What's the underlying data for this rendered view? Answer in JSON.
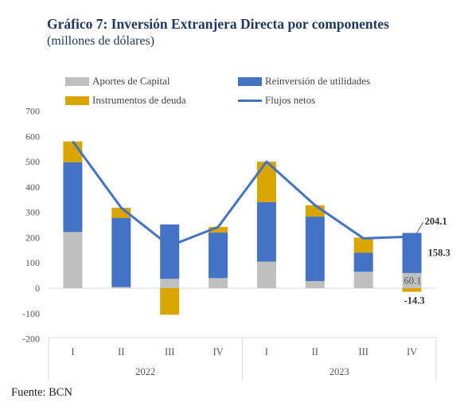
{
  "title": "Gráfico 7: Inversión Extranjera Directa por componentes",
  "subtitle": "(millones de dólares)",
  "source": "Fuente: BCN",
  "legend": [
    {
      "label": "Aportes de Capital",
      "type": "bar",
      "color": "#bfbfbf"
    },
    {
      "label": "Reinversión de utilidades",
      "type": "bar",
      "color": "#4472c4"
    },
    {
      "label": "Instrumentos de deuda",
      "type": "bar",
      "color": "#d9a500"
    },
    {
      "label": "Flujos netos",
      "type": "line",
      "color": "#4472c4"
    }
  ],
  "chart_data": {
    "type": "bar",
    "stacked": true,
    "categories": [
      "I",
      "II",
      "III",
      "IV",
      "I",
      "II",
      "III",
      "IV"
    ],
    "groups": [
      {
        "label": "2022",
        "span": 4
      },
      {
        "label": "2023",
        "span": 4
      }
    ],
    "series": [
      {
        "name": "Aportes de Capital",
        "type": "bar",
        "color": "#bfbfbf",
        "values": [
          222,
          5,
          37,
          40,
          105,
          28,
          65,
          60.1
        ]
      },
      {
        "name": "Reinversión de utilidades",
        "type": "bar",
        "color": "#4472c4",
        "values": [
          276,
          273,
          215,
          180,
          235,
          255,
          75,
          158.3
        ]
      },
      {
        "name": "Instrumentos de deuda",
        "type": "bar",
        "color": "#d9a500",
        "values": [
          82,
          40,
          -105,
          22,
          160,
          45,
          60,
          -14.3
        ]
      },
      {
        "name": "Flujos netos",
        "type": "line",
        "color": "#4472c4",
        "values": [
          580,
          318,
          167,
          242,
          500,
          328,
          197,
          204.1
        ]
      }
    ],
    "data_labels": [
      "204.1",
      "158.3",
      "60.1",
      "-14.3"
    ],
    "ylim": [
      -200,
      700
    ],
    "yticks": [
      "-200",
      "-100",
      "0",
      "100",
      "200",
      "300",
      "400",
      "500",
      "600",
      "700"
    ],
    "grid": false,
    "legend_position": "top"
  }
}
